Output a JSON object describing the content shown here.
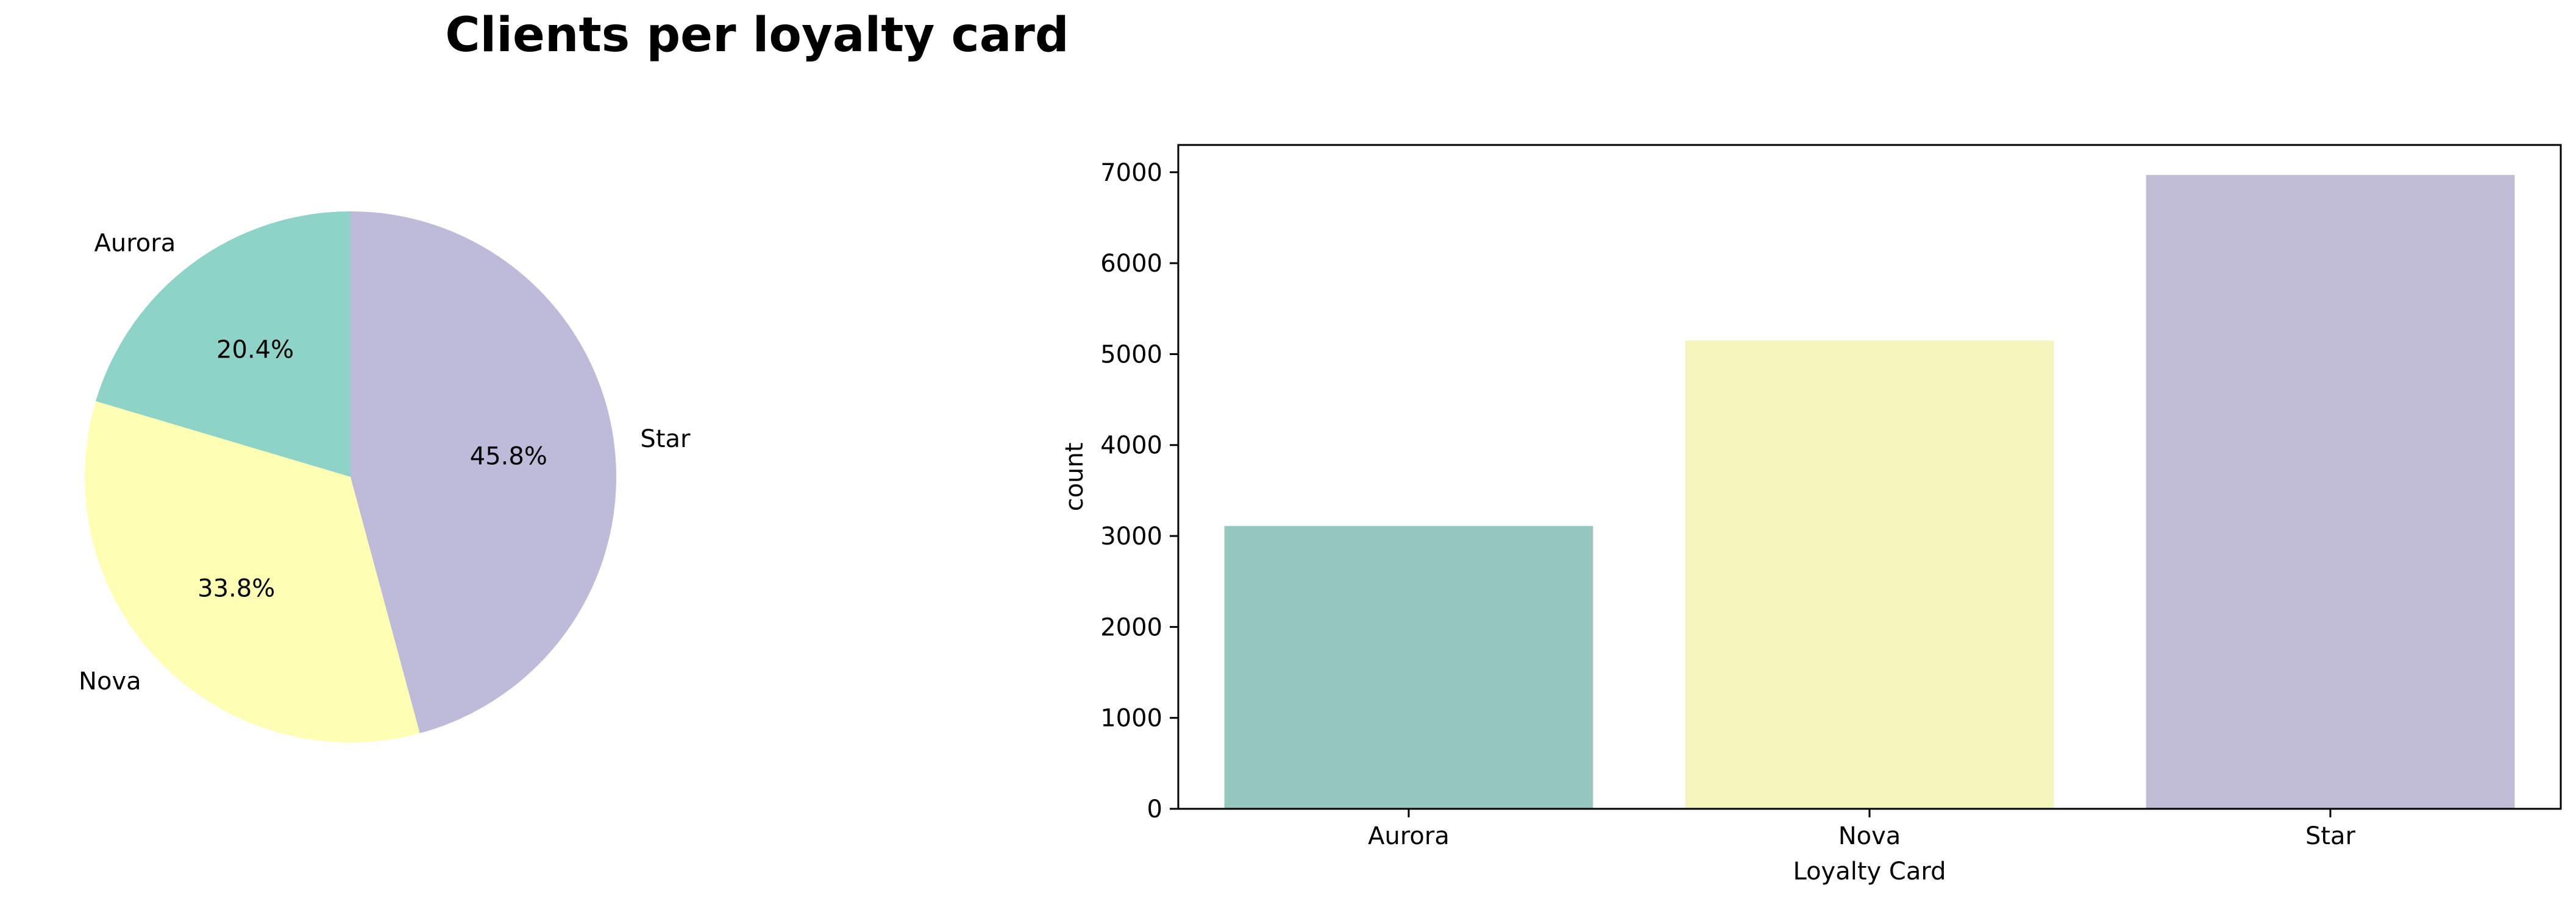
{
  "title": "Clients per loyalty card",
  "colors": {
    "pie": [
      "#8dd3c7",
      "#ffffb3",
      "#bebada"
    ],
    "bar": [
      "#96c7bf",
      "#f4f6bc",
      "#c1bcd6"
    ]
  },
  "chart_data": [
    {
      "type": "pie",
      "title": "Clients per loyalty card",
      "labels": [
        "Aurora",
        "Nova",
        "Star"
      ],
      "percentages": [
        20.4,
        33.8,
        45.8
      ],
      "pct_labels": [
        "20.4%",
        "33.8%",
        "45.8%"
      ],
      "start_angle_deg": 90,
      "direction": "counterclockwise"
    },
    {
      "type": "bar",
      "categories": [
        "Aurora",
        "Nova",
        "Star"
      ],
      "values": [
        3110,
        5150,
        6970
      ],
      "xlabel": "Loyalty Card",
      "ylabel": "count",
      "ylim": [
        0,
        7300
      ],
      "yticks": [
        "0",
        "1000",
        "2000",
        "3000",
        "4000",
        "5000",
        "6000",
        "7000"
      ],
      "grid": false,
      "legend": "none"
    }
  ]
}
